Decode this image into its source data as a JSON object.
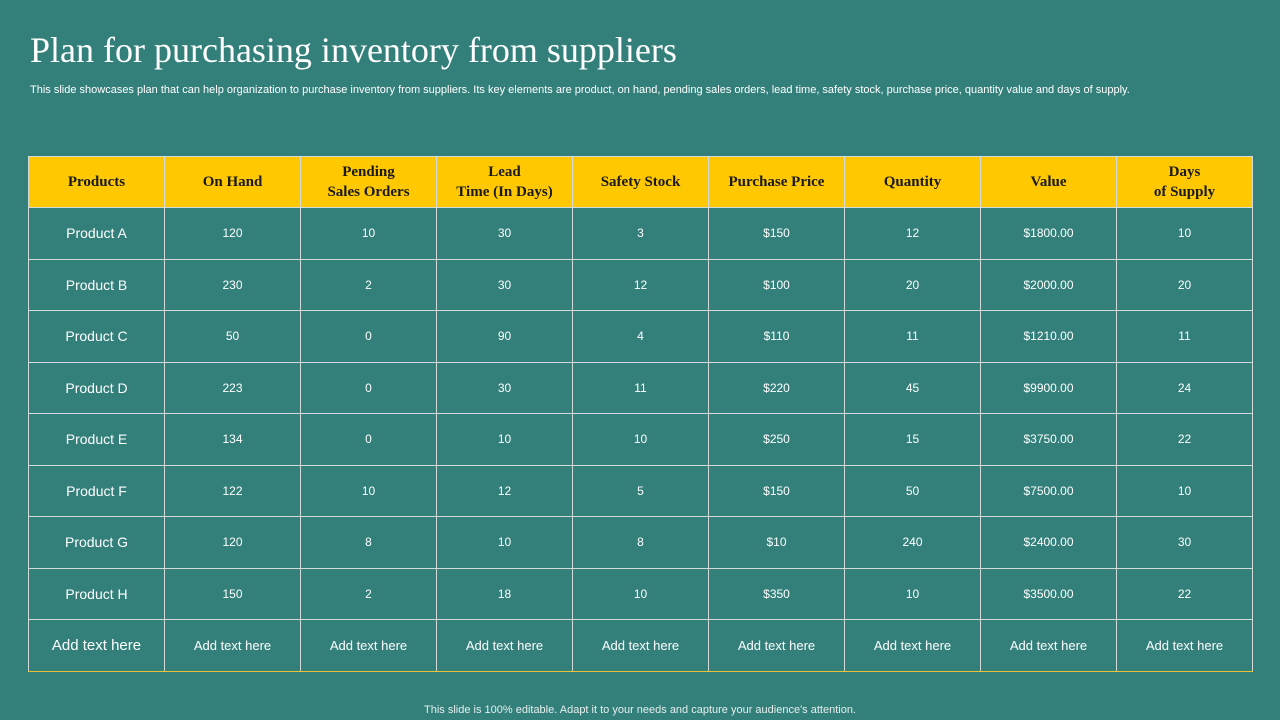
{
  "title": "Plan for purchasing inventory from suppliers",
  "subtitle": "This slide showcases plan that can help organization to purchase inventory from suppliers. Its key elements are product, on hand, pending sales orders, lead time, safety stock, purchase price, quantity value and days of supply.",
  "table": {
    "headers": [
      "Products",
      "On Hand",
      "Pending\nSales Orders",
      "Lead\nTime (In Days)",
      "Safety Stock",
      "Purchase Price",
      "Quantity",
      "Value",
      "Days\nof Supply"
    ],
    "rows": [
      [
        "Product A",
        "120",
        "10",
        "30",
        "3",
        "$150",
        "12",
        "$1800.00",
        "10"
      ],
      [
        "Product B",
        "230",
        "2",
        "30",
        "12",
        "$100",
        "20",
        "$2000.00",
        "20"
      ],
      [
        "Product C",
        "50",
        "0",
        "90",
        "4",
        "$110",
        "11",
        "$1210.00",
        "11"
      ],
      [
        "Product D",
        "223",
        "0",
        "30",
        "11",
        "$220",
        "45",
        "$9900.00",
        "24"
      ],
      [
        "Product E",
        "134",
        "0",
        "10",
        "10",
        "$250",
        "15",
        "$3750.00",
        "22"
      ],
      [
        "Product F",
        "122",
        "10",
        "12",
        "5",
        "$150",
        "50",
        "$7500.00",
        "10"
      ],
      [
        "Product G",
        "120",
        "8",
        "10",
        "8",
        "$10",
        "240",
        "$2400.00",
        "30"
      ],
      [
        "Product H",
        "150",
        "2",
        "18",
        "10",
        "$350",
        "10",
        "$3500.00",
        "22"
      ],
      [
        "Add text here",
        "Add text here",
        "Add text here",
        "Add text here",
        "Add text here",
        "Add text here",
        "Add text here",
        "Add text here",
        "Add text here"
      ]
    ]
  },
  "footer": "This slide is 100% editable. Adapt it to your needs and capture your audience's attention.",
  "colors": {
    "background": "#33807b",
    "header_fill": "#ffc800",
    "grid_lines": "#d4dcdb"
  }
}
